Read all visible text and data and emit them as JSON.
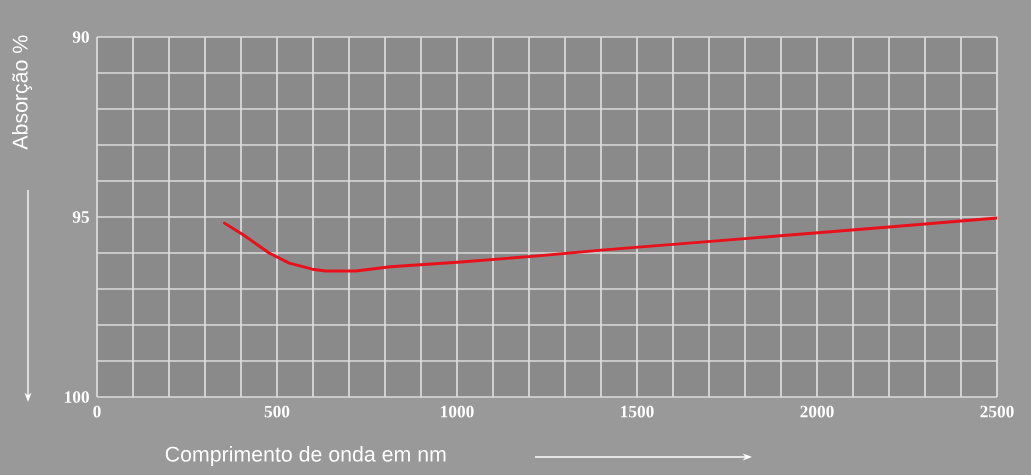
{
  "chart_data": {
    "type": "line",
    "xlabel": "Comprimento de onda em nm",
    "ylabel": "Absorção %",
    "x": [
      354,
      407,
      478,
      534,
      598,
      635,
      719,
      815,
      1011,
      1225,
      1400,
      1800,
      2200,
      2500
    ],
    "series": [
      {
        "color": "#e8101a",
        "values": [
          95.17,
          95.5,
          96.0,
          96.28,
          96.45,
          96.5,
          96.5,
          96.38,
          96.25,
          96.08,
          95.92,
          95.6,
          95.28,
          95.03
        ]
      }
    ],
    "xlim": [
      0,
      2500
    ],
    "ylim": [
      100,
      90
    ],
    "xticks": [
      0,
      {
        "value": 100,
        "label": null
      },
      {
        "value": 200,
        "label": null
      },
      {
        "value": 300,
        "label": null
      },
      {
        "value": 400,
        "label": null
      },
      500,
      {
        "value": 600,
        "label": null
      },
      {
        "value": 700,
        "label": null
      },
      {
        "value": 800,
        "label": null
      },
      {
        "value": 900,
        "label": null
      },
      1000,
      {
        "value": 1100,
        "label": null
      },
      {
        "value": 1200,
        "label": null
      },
      {
        "value": 1300,
        "label": null
      },
      {
        "value": 1400,
        "label": null
      },
      1500,
      {
        "value": 1600,
        "label": null
      },
      {
        "value": 1700,
        "label": null
      },
      {
        "value": 1800,
        "label": null
      },
      {
        "value": 1900,
        "label": null
      },
      2000,
      {
        "value": 2100,
        "label": null
      },
      {
        "value": 2200,
        "label": null
      },
      {
        "value": 2300,
        "label": null
      },
      {
        "value": 2400,
        "label": null
      },
      2500
    ],
    "yticks": [
      90,
      {
        "value": 91,
        "label": null
      },
      {
        "value": 92,
        "label": null
      },
      {
        "value": 93,
        "label": null
      },
      {
        "value": 94,
        "label": null
      },
      95,
      {
        "value": 96,
        "label": null
      },
      {
        "value": 97,
        "label": null
      },
      {
        "value": 98,
        "label": null
      },
      {
        "value": 99,
        "label": null
      },
      100
    ],
    "grid": true,
    "marker": "none",
    "line_style": "solid"
  }
}
